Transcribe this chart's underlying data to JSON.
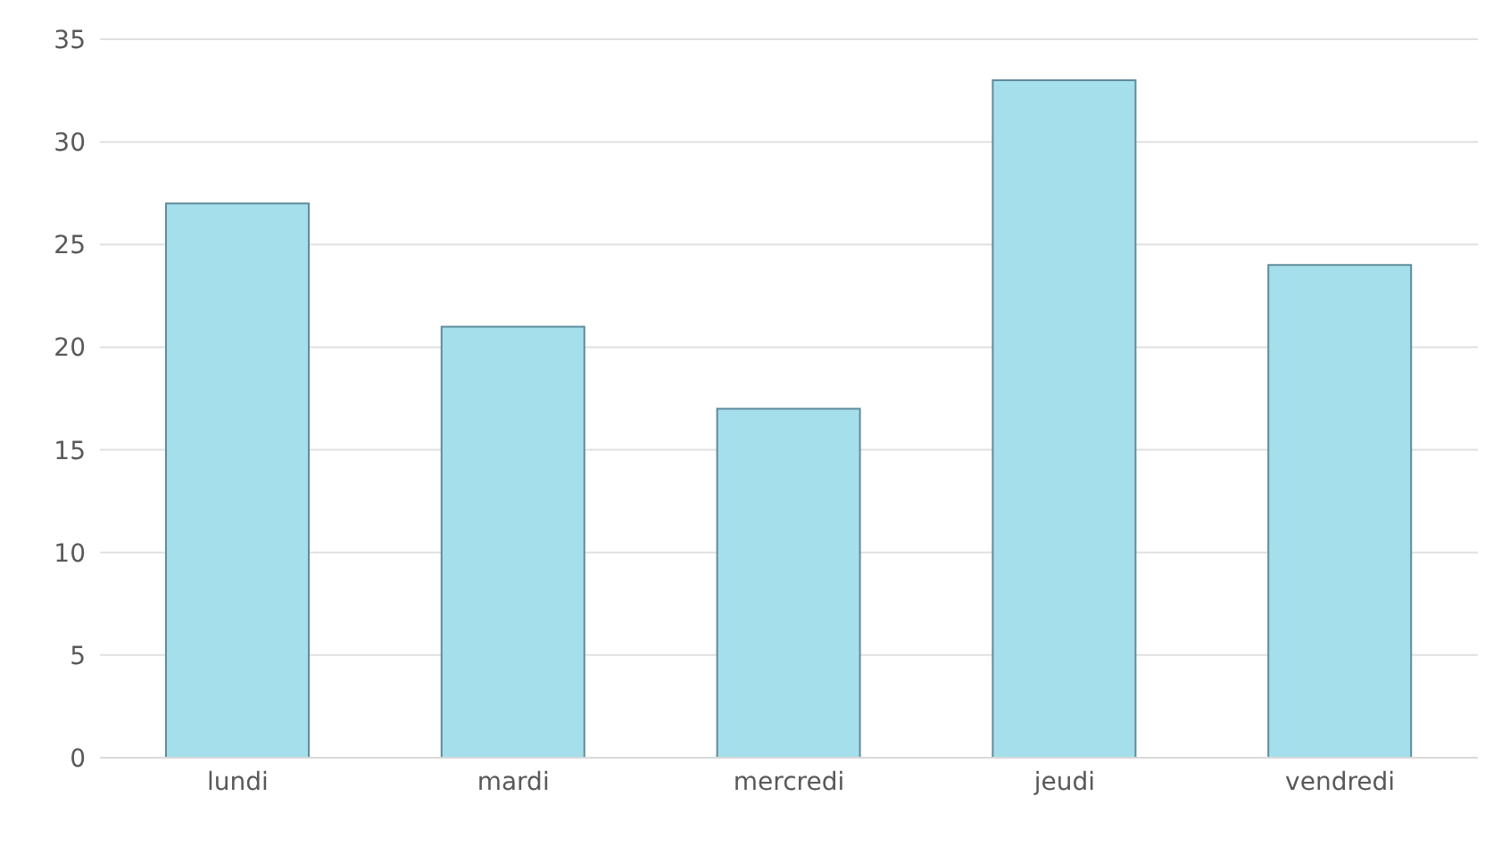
{
  "chart_data": {
    "type": "bar",
    "categories": [
      "lundi",
      "mardi",
      "mercredi",
      "jeudi",
      "vendredi"
    ],
    "values": [
      27,
      21,
      17,
      33,
      24
    ],
    "color": "#a6dfec",
    "ylim": [
      0,
      35
    ],
    "yticks": [
      0,
      5,
      10,
      15,
      20,
      25,
      30,
      35
    ],
    "grid": "y"
  }
}
